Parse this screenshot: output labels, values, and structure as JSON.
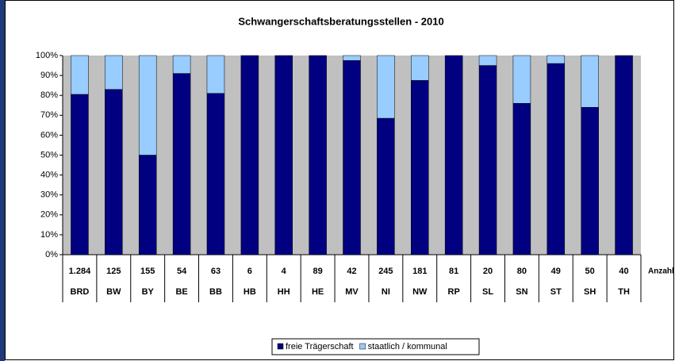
{
  "chart_data": {
    "type": "stacked_bar",
    "title": "Schwangerschaftsberatungsstellen - 2010",
    "categories": [
      "BRD",
      "BW",
      "BY",
      "BE",
      "BB",
      "HB",
      "HH",
      "HE",
      "MV",
      "NI",
      "NW",
      "RP",
      "SL",
      "SN",
      "ST",
      "SH",
      "TH"
    ],
    "series": [
      {
        "name": "freie Trägerschaft",
        "color": "#000080",
        "values": [
          80.5,
          83,
          50,
          91,
          81,
          100,
          100,
          100,
          97.5,
          68.5,
          87.5,
          100,
          95,
          76,
          96,
          74,
          100
        ]
      },
      {
        "name": "staatlich / kommunal",
        "color": "#99ccff",
        "values": [
          19.5,
          17,
          50,
          9,
          19,
          0,
          0,
          0,
          2.5,
          31.5,
          12.5,
          0,
          5,
          24,
          4,
          26,
          0
        ]
      }
    ],
    "ylim": [
      0,
      100
    ],
    "yticks": [
      {
        "value": 0,
        "label": "0%"
      },
      {
        "value": 10,
        "label": "10%"
      },
      {
        "value": 20,
        "label": "20%"
      },
      {
        "value": 30,
        "label": "30%"
      },
      {
        "value": 40,
        "label": "40%"
      },
      {
        "value": 50,
        "label": "50%"
      },
      {
        "value": 60,
        "label": "60%"
      },
      {
        "value": 70,
        "label": "70%"
      },
      {
        "value": 80,
        "label": "80%"
      },
      {
        "value": 90,
        "label": "90%"
      },
      {
        "value": 100,
        "label": "100%"
      }
    ],
    "grid": false,
    "plot_background": "#c0c0c0",
    "table_row_label": "Anzahl",
    "counts": [
      {
        "value": 1284,
        "label": "1.284"
      },
      125,
      155,
      54,
      63,
      6,
      4,
      89,
      42,
      245,
      181,
      81,
      20,
      80,
      49,
      50,
      40
    ],
    "legend_position": "bottom"
  }
}
